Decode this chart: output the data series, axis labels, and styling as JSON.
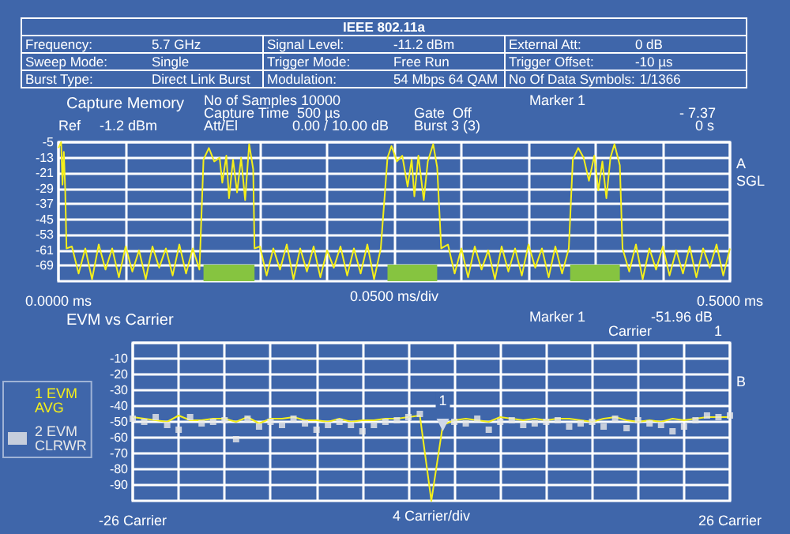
{
  "chart_data": [
    {
      "type": "other",
      "title": "IEEE 802.11a",
      "annotations": [
        "Frequency:",
        "5.7 GHz",
        "Signal Level:",
        "-11.2 dBm",
        "External Att:",
        "0 dB",
        "Sweep Mode:",
        "Single",
        "Trigger Mode:",
        "Free Run",
        "Trigger Offset:",
        "-10 µs",
        "Burst Type:",
        "Direct Link Burst",
        "Modulation:",
        "54 Mbps 64 QAM",
        "No Of Data Symbols:",
        "1/1366"
      ]
    },
    {
      "type": "line",
      "title": "Capture Memory",
      "xlabel": "0.0500 ms/div",
      "annotations": [
        "No of Samples 10000",
        "Capture Time  500 µs",
        "Att/El",
        "0.00 / 10.00 dB",
        "Gate  Off",
        "Burst 3 (3)",
        "Marker 1",
        "- 7.37",
        "0 s",
        "Ref",
        "-1.2 dBm",
        "A",
        "SGL"
      ],
      "xlim": [
        0,
        0.5
      ],
      "xticks": [
        {
          "value": 0,
          "label": "0.0000 ms"
        },
        {
          "value": 0.05,
          "label": null
        },
        {
          "value": 0.1,
          "label": null
        },
        {
          "value": 0.15,
          "label": null
        },
        {
          "value": 0.2,
          "label": null
        },
        {
          "value": 0.25,
          "label": null
        },
        {
          "value": 0.3,
          "label": null
        },
        {
          "value": 0.35,
          "label": null
        },
        {
          "value": 0.4,
          "label": null
        },
        {
          "value": 0.45,
          "label": null
        },
        {
          "value": 0.5,
          "label": "0.5000 ms"
        }
      ],
      "ylim": [
        -77,
        -5
      ],
      "yticks": [
        -5,
        -13,
        -21,
        -29,
        -37,
        -45,
        -53,
        -61,
        -69
      ],
      "grid": true,
      "bands": [
        {
          "axis": "x",
          "from": 0.108,
          "to": 0.146,
          "color": "#86c440"
        },
        {
          "axis": "x",
          "from": 0.245,
          "to": 0.282,
          "color": "#86c440"
        },
        {
          "axis": "x",
          "from": 0.381,
          "to": 0.418,
          "color": "#86c440"
        }
      ],
      "series": [
        {
          "color": "#f5ef1a",
          "x": [
            0,
            0.002,
            0.003,
            0.004,
            0.005,
            0.006,
            0.01,
            0.015,
            0.02,
            0.025,
            0.03,
            0.035,
            0.04,
            0.045,
            0.05,
            0.055,
            0.06,
            0.065,
            0.07,
            0.075,
            0.08,
            0.085,
            0.09,
            0.095,
            0.1,
            0.105,
            0.108,
            0.112,
            0.116,
            0.12,
            0.122,
            0.125,
            0.127,
            0.13,
            0.133,
            0.136,
            0.139,
            0.142,
            0.145,
            0.146,
            0.15,
            0.155,
            0.16,
            0.165,
            0.17,
            0.175,
            0.18,
            0.185,
            0.19,
            0.195,
            0.2,
            0.205,
            0.21,
            0.215,
            0.22,
            0.225,
            0.23,
            0.235,
            0.24,
            0.245,
            0.248,
            0.252,
            0.256,
            0.26,
            0.263,
            0.265,
            0.268,
            0.272,
            0.275,
            0.279,
            0.282,
            0.285,
            0.29,
            0.295,
            0.3,
            0.305,
            0.31,
            0.315,
            0.32,
            0.325,
            0.33,
            0.335,
            0.34,
            0.345,
            0.35,
            0.355,
            0.36,
            0.365,
            0.37,
            0.375,
            0.38,
            0.383,
            0.387,
            0.391,
            0.395,
            0.399,
            0.402,
            0.405,
            0.408,
            0.411,
            0.414,
            0.418,
            0.42,
            0.425,
            0.43,
            0.435,
            0.44,
            0.445,
            0.45,
            0.455,
            0.46,
            0.465,
            0.47,
            0.475,
            0.48,
            0.485,
            0.49,
            0.495,
            0.5
          ],
          "values": [
            -8,
            -5,
            -27,
            -10,
            -29,
            -60,
            -59,
            -73,
            -60,
            -76,
            -58,
            -71,
            -60,
            -75,
            -59,
            -72,
            -61,
            -76,
            -59,
            -70,
            -60,
            -74,
            -58,
            -73,
            -60,
            -71,
            -14,
            -8,
            -15,
            -13,
            -26,
            -12,
            -34,
            -14,
            -31,
            -13,
            -35,
            -6,
            -19,
            -60,
            -59,
            -74,
            -60,
            -71,
            -58,
            -76,
            -60,
            -72,
            -59,
            -75,
            -61,
            -70,
            -59,
            -74,
            -60,
            -73,
            -58,
            -76,
            -60,
            -13,
            -7,
            -15,
            -12,
            -28,
            -14,
            -33,
            -12,
            -35,
            -15,
            -6,
            -18,
            -60,
            -58,
            -73,
            -60,
            -75,
            -59,
            -71,
            -61,
            -76,
            -59,
            -72,
            -60,
            -74,
            -58,
            -70,
            -60,
            -75,
            -59,
            -73,
            -60,
            -14,
            -8,
            -13,
            -25,
            -12,
            -30,
            -15,
            -34,
            -13,
            -6,
            -17,
            -60,
            -72,
            -58,
            -76,
            -60,
            -71,
            -59,
            -74,
            -61,
            -73,
            -59,
            -75,
            -60,
            -70,
            -58,
            -74,
            -60
          ]
        }
      ]
    },
    {
      "type": "line",
      "title": "EVM vs Carrier",
      "xlabel": "4 Carrier/div",
      "annotations": [
        "Marker 1",
        "-51.96 dB",
        "Carrier",
        "1",
        "B",
        {
          "text": "1",
          "x": 1,
          "y": -52
        }
      ],
      "xlim": [
        -26,
        26
      ],
      "xticks": [
        {
          "value": -26,
          "label": "-26 Carrier"
        },
        {
          "value": -22,
          "label": null
        },
        {
          "value": -18,
          "label": null
        },
        {
          "value": -14,
          "label": null
        },
        {
          "value": -10,
          "label": null
        },
        {
          "value": -6,
          "label": null
        },
        {
          "value": -2,
          "label": null
        },
        {
          "value": 2,
          "label": null
        },
        {
          "value": 6,
          "label": null
        },
        {
          "value": 10,
          "label": null
        },
        {
          "value": 14,
          "label": null
        },
        {
          "value": 18,
          "label": null
        },
        {
          "value": 22,
          "label": null
        },
        {
          "value": 26,
          "label": "26 Carrier"
        }
      ],
      "ylim": [
        -100,
        0
      ],
      "yticks": [
        {
          "value": 0,
          "label": null
        },
        -10,
        -20,
        -30,
        -40,
        -50,
        -60,
        -70,
        -80,
        -90
      ],
      "grid": true,
      "legend": "left",
      "x": [
        -26,
        -25,
        -24,
        -23,
        -22,
        -21,
        -20,
        -19,
        -18,
        -17,
        -16,
        -15,
        -14,
        -13,
        -12,
        -11,
        -10,
        -9,
        -8,
        -7,
        -6,
        -5,
        -4,
        -3,
        -2,
        -1,
        0,
        1,
        2,
        3,
        4,
        5,
        6,
        7,
        8,
        9,
        10,
        11,
        12,
        13,
        14,
        15,
        16,
        17,
        18,
        19,
        20,
        21,
        22,
        23,
        24,
        25,
        26
      ],
      "series": [
        {
          "name": "1 EVM AVG",
          "type": "line",
          "marker": "none",
          "color": "#f5ef1a",
          "values": [
            -47,
            -48,
            -49,
            -50,
            -46,
            -49,
            -49,
            -48,
            -48,
            -50,
            -47,
            -51,
            -48,
            -48,
            -47,
            -49,
            -49,
            -50,
            -48,
            -50,
            -49,
            -49,
            -48,
            -48,
            -47,
            -46,
            -100,
            -52,
            -49,
            -48,
            -49,
            -50,
            -47,
            -48,
            -49,
            -48,
            -49,
            -48,
            -48,
            -49,
            -50,
            -48,
            -47,
            -49,
            -50,
            -49,
            -50,
            -48,
            -49,
            -48,
            -47,
            -47,
            -47
          ]
        },
        {
          "name": "2 EVM CLRWR",
          "type": "scatter",
          "marker": "square",
          "color": "#e8e8e8",
          "values": [
            -48,
            -50,
            -47,
            -52,
            -55,
            -47,
            -51,
            -50,
            -49,
            -61,
            -48,
            -53,
            -50,
            -52,
            -48,
            -51,
            -55,
            -52,
            -50,
            -52,
            -56,
            -52,
            -50,
            -49,
            -47,
            -45,
            null,
            null,
            -50,
            -51,
            -48,
            -55,
            -50,
            -49,
            -52,
            -51,
            -50,
            -49,
            -53,
            -51,
            -50,
            -53,
            -48,
            -54,
            -49,
            -51,
            -52,
            -56,
            -53,
            -49,
            -46,
            -47,
            -46
          ]
        }
      ]
    }
  ]
}
